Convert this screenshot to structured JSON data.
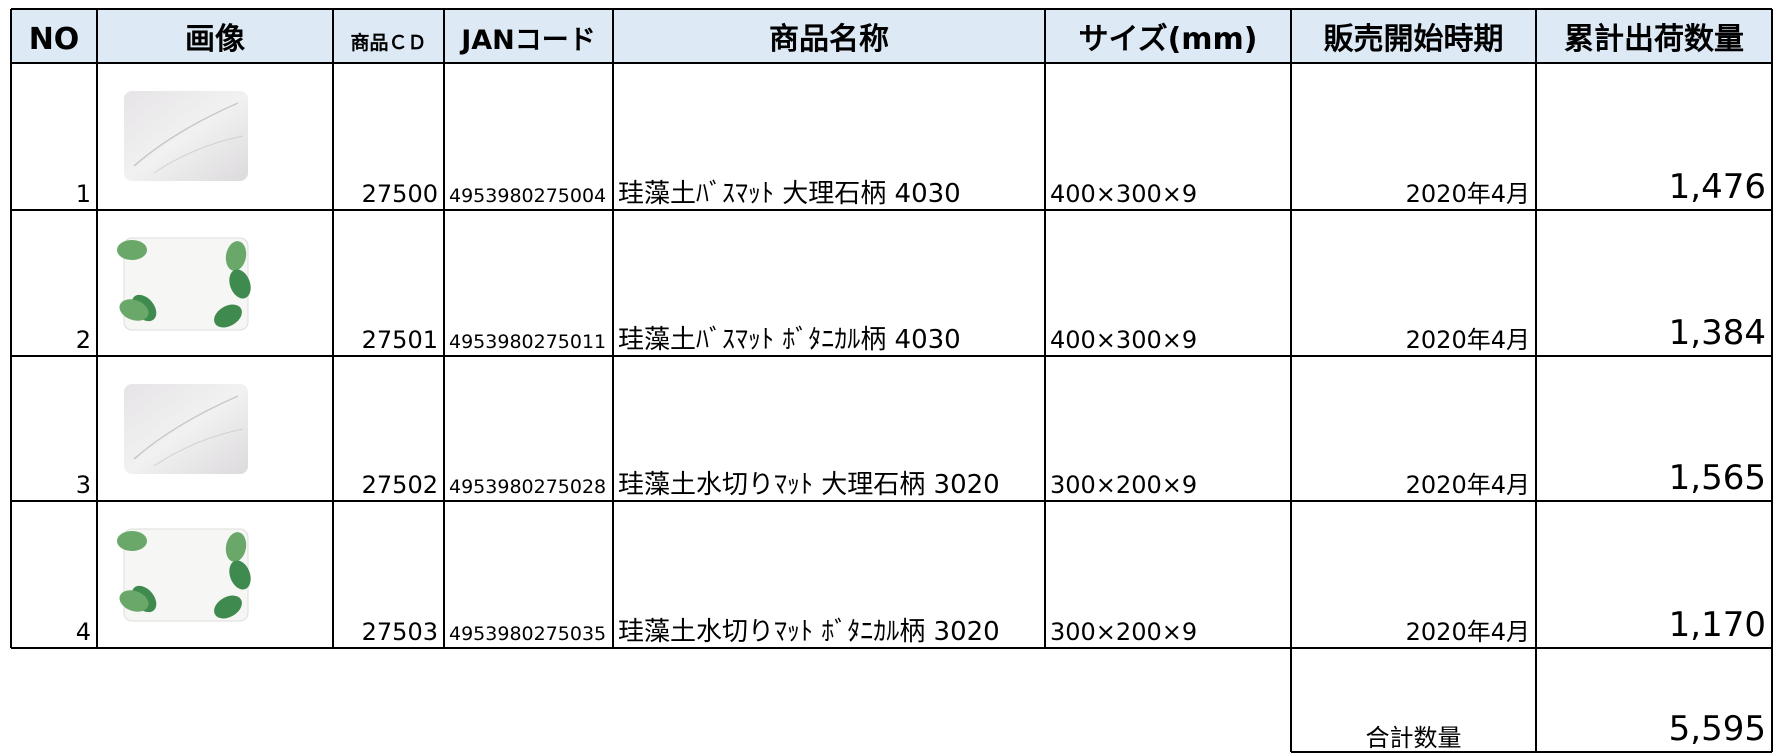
{
  "table": {
    "headers": [
      "NO",
      "画像",
      "商品ＣＤ",
      "JANコード",
      "商品名称",
      "サイズ(mm)",
      "販売開始時期",
      "累計出荷数量"
    ],
    "rows": [
      [
        "1",
        "27500",
        "4953980275004",
        "珪藻土ﾊﾞｽﾏｯﾄ 大理石柄 4030",
        "400×300×9",
        "2020年4月",
        "1,476"
      ],
      [
        "2",
        "27501",
        "4953980275011",
        "珪藻土ﾊﾞｽﾏｯﾄ ﾎﾞﾀﾆｶﾙ柄 4030",
        "400×300×9",
        "2020年4月",
        "1,384"
      ],
      [
        "3",
        "27502",
        "4953980275028",
        "珪藻土水切りﾏｯﾄ 大理石柄 3020",
        "300×200×9",
        "2020年4月",
        "1,565"
      ],
      [
        "4",
        "27503",
        "4953980275035",
        "珪藻土水切りﾏｯﾄ ﾎﾞﾀﾆｶﾙ柄 3020",
        "300×200×9",
        "2020年4月",
        "1,170"
      ]
    ],
    "total": {
      "label": "合計数量",
      "value": "5,595"
    }
  }
}
